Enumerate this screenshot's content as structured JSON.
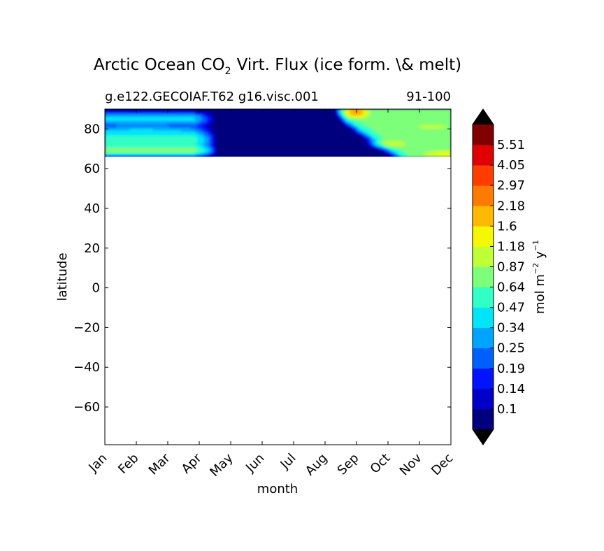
{
  "chart_data": {
    "type": "heatmap",
    "title": {
      "prefix": "Arctic Ocean CO",
      "subscript": "2",
      "suffix": "Virt. Flux (ice form. \\& melt)"
    },
    "subtitle_left": "g.e122.GECOIAF.T62 g16.visc.001",
    "subtitle_right": "91-100",
    "xlabel": "month",
    "ylabel": "latitude",
    "x_ticks": [
      "Jan",
      "Feb",
      "Mar",
      "Apr",
      "May",
      "Jun",
      "Jul",
      "Aug",
      "Sep",
      "Oct",
      "Nov",
      "Dec"
    ],
    "y_ticks": [
      80,
      60,
      40,
      20,
      0,
      -20,
      -40,
      -60
    ],
    "xlim": [
      0,
      11
    ],
    "ylim": [
      -79,
      90
    ],
    "data_lat_range": [
      66,
      90
    ],
    "colorbar": {
      "levels": [
        "0.1",
        "0.14",
        "0.19",
        "0.25",
        "0.34",
        "0.47",
        "0.64",
        "0.87",
        "1.18",
        "1.6",
        "2.18",
        "2.97",
        "4.05",
        "5.51"
      ],
      "colors": [
        "#00007f",
        "#0000c8",
        "#0014ff",
        "#0060ff",
        "#00a4ff",
        "#00e4f8",
        "#30ffc6",
        "#7dff7a",
        "#bfff38",
        "#f4f802",
        "#ffb900",
        "#ff7a00",
        "#ff3d00",
        "#e00000",
        "#800000"
      ],
      "extend_color": "#000000",
      "label": {
        "prefix": "mol m",
        "exp1": "−2",
        "mid": "y",
        "exp2": "−1"
      }
    }
  }
}
